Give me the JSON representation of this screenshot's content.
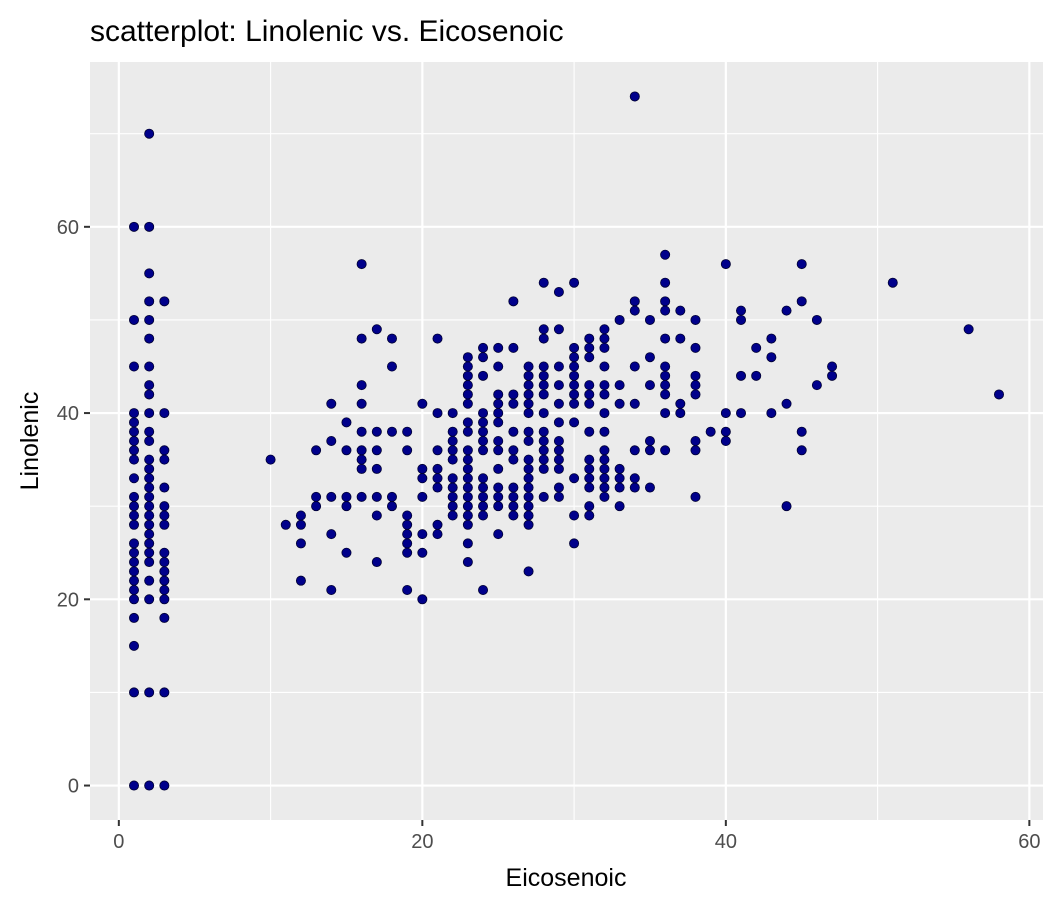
{
  "chart_data": {
    "type": "scatter",
    "title": "scatterplot: Linolenic vs. Eicosenoic",
    "xlabel": "Eicosenoic",
    "ylabel": "Linolenic",
    "xlim": [
      -1.9,
      60.9
    ],
    "ylim": [
      -3.7,
      77.7
    ],
    "x_ticks": [
      0,
      20,
      40,
      60
    ],
    "x_tick_labels": [
      "0",
      "20",
      "40",
      "60"
    ],
    "y_ticks": [
      0,
      20,
      40,
      60
    ],
    "y_tick_labels": [
      "0",
      "20",
      "40",
      "60"
    ],
    "grid": true,
    "legend": "none",
    "point_color": "#00008b",
    "panel_color": "#ebebeb",
    "points": [
      [
        1,
        0
      ],
      [
        1,
        10
      ],
      [
        1,
        15
      ],
      [
        1,
        18
      ],
      [
        1,
        20
      ],
      [
        1,
        21
      ],
      [
        1,
        22
      ],
      [
        1,
        23
      ],
      [
        1,
        24
      ],
      [
        1,
        25
      ],
      [
        1,
        26
      ],
      [
        1,
        28
      ],
      [
        1,
        29
      ],
      [
        1,
        30
      ],
      [
        1,
        31
      ],
      [
        1,
        33
      ],
      [
        1,
        35
      ],
      [
        1,
        36
      ],
      [
        1,
        37
      ],
      [
        1,
        38
      ],
      [
        1,
        39
      ],
      [
        1,
        40
      ],
      [
        1,
        45
      ],
      [
        1,
        50
      ],
      [
        1,
        60
      ],
      [
        2,
        0
      ],
      [
        2,
        10
      ],
      [
        2,
        20
      ],
      [
        2,
        22
      ],
      [
        2,
        24
      ],
      [
        2,
        25
      ],
      [
        2,
        26
      ],
      [
        2,
        27
      ],
      [
        2,
        28
      ],
      [
        2,
        29
      ],
      [
        2,
        30
      ],
      [
        2,
        31
      ],
      [
        2,
        32
      ],
      [
        2,
        33
      ],
      [
        2,
        34
      ],
      [
        2,
        35
      ],
      [
        2,
        37
      ],
      [
        2,
        38
      ],
      [
        2,
        40
      ],
      [
        2,
        42
      ],
      [
        2,
        43
      ],
      [
        2,
        45
      ],
      [
        2,
        48
      ],
      [
        2,
        50
      ],
      [
        2,
        52
      ],
      [
        2,
        55
      ],
      [
        2,
        60
      ],
      [
        2,
        70
      ],
      [
        3,
        0
      ],
      [
        3,
        10
      ],
      [
        3,
        18
      ],
      [
        3,
        20
      ],
      [
        3,
        21
      ],
      [
        3,
        22
      ],
      [
        3,
        23
      ],
      [
        3,
        24
      ],
      [
        3,
        25
      ],
      [
        3,
        28
      ],
      [
        3,
        29
      ],
      [
        3,
        30
      ],
      [
        3,
        32
      ],
      [
        3,
        35
      ],
      [
        3,
        36
      ],
      [
        3,
        40
      ],
      [
        3,
        52
      ],
      [
        10,
        35
      ],
      [
        11,
        28
      ],
      [
        12,
        22
      ],
      [
        12,
        26
      ],
      [
        12,
        28
      ],
      [
        12,
        29
      ],
      [
        13,
        30
      ],
      [
        13,
        31
      ],
      [
        13,
        36
      ],
      [
        14,
        21
      ],
      [
        14,
        27
      ],
      [
        14,
        31
      ],
      [
        14,
        37
      ],
      [
        14,
        41
      ],
      [
        15,
        25
      ],
      [
        15,
        30
      ],
      [
        15,
        31
      ],
      [
        15,
        36
      ],
      [
        15,
        39
      ],
      [
        16,
        31
      ],
      [
        16,
        34
      ],
      [
        16,
        35
      ],
      [
        16,
        36
      ],
      [
        16,
        38
      ],
      [
        16,
        41
      ],
      [
        16,
        43
      ],
      [
        16,
        48
      ],
      [
        16,
        56
      ],
      [
        17,
        24
      ],
      [
        17,
        29
      ],
      [
        17,
        31
      ],
      [
        17,
        34
      ],
      [
        17,
        36
      ],
      [
        17,
        38
      ],
      [
        17,
        49
      ],
      [
        18,
        30
      ],
      [
        18,
        31
      ],
      [
        18,
        38
      ],
      [
        18,
        45
      ],
      [
        18,
        48
      ],
      [
        19,
        21
      ],
      [
        19,
        25
      ],
      [
        19,
        26
      ],
      [
        19,
        27
      ],
      [
        19,
        28
      ],
      [
        19,
        29
      ],
      [
        19,
        36
      ],
      [
        19,
        38
      ],
      [
        20,
        20
      ],
      [
        20,
        25
      ],
      [
        20,
        27
      ],
      [
        20,
        31
      ],
      [
        20,
        33
      ],
      [
        20,
        34
      ],
      [
        20,
        41
      ],
      [
        21,
        27
      ],
      [
        21,
        28
      ],
      [
        21,
        32
      ],
      [
        21,
        33
      ],
      [
        21,
        34
      ],
      [
        21,
        36
      ],
      [
        21,
        40
      ],
      [
        21,
        48
      ],
      [
        22,
        29
      ],
      [
        22,
        30
      ],
      [
        22,
        31
      ],
      [
        22,
        32
      ],
      [
        22,
        33
      ],
      [
        22,
        35
      ],
      [
        22,
        36
      ],
      [
        22,
        37
      ],
      [
        22,
        38
      ],
      [
        22,
        40
      ],
      [
        23,
        24
      ],
      [
        23,
        26
      ],
      [
        23,
        28
      ],
      [
        23,
        29
      ],
      [
        23,
        30
      ],
      [
        23,
        31
      ],
      [
        23,
        32
      ],
      [
        23,
        33
      ],
      [
        23,
        34
      ],
      [
        23,
        35
      ],
      [
        23,
        36
      ],
      [
        23,
        38
      ],
      [
        23,
        39
      ],
      [
        23,
        41
      ],
      [
        23,
        42
      ],
      [
        23,
        43
      ],
      [
        23,
        44
      ],
      [
        23,
        45
      ],
      [
        23,
        46
      ],
      [
        24,
        21
      ],
      [
        24,
        29
      ],
      [
        24,
        30
      ],
      [
        24,
        31
      ],
      [
        24,
        32
      ],
      [
        24,
        33
      ],
      [
        24,
        36
      ],
      [
        24,
        37
      ],
      [
        24,
        38
      ],
      [
        24,
        39
      ],
      [
        24,
        40
      ],
      [
        24,
        44
      ],
      [
        24,
        46
      ],
      [
        24,
        47
      ],
      [
        25,
        27
      ],
      [
        25,
        30
      ],
      [
        25,
        31
      ],
      [
        25,
        32
      ],
      [
        25,
        34
      ],
      [
        25,
        36
      ],
      [
        25,
        37
      ],
      [
        25,
        39
      ],
      [
        25,
        40
      ],
      [
        25,
        41
      ],
      [
        25,
        42
      ],
      [
        25,
        45
      ],
      [
        25,
        47
      ],
      [
        26,
        29
      ],
      [
        26,
        30
      ],
      [
        26,
        31
      ],
      [
        26,
        32
      ],
      [
        26,
        35
      ],
      [
        26,
        36
      ],
      [
        26,
        38
      ],
      [
        26,
        41
      ],
      [
        26,
        42
      ],
      [
        26,
        47
      ],
      [
        26,
        52
      ],
      [
        27,
        23
      ],
      [
        27,
        28
      ],
      [
        27,
        29
      ],
      [
        27,
        30
      ],
      [
        27,
        31
      ],
      [
        27,
        32
      ],
      [
        27,
        33
      ],
      [
        27,
        34
      ],
      [
        27,
        35
      ],
      [
        27,
        37
      ],
      [
        27,
        38
      ],
      [
        27,
        40
      ],
      [
        27,
        41
      ],
      [
        27,
        42
      ],
      [
        27,
        43
      ],
      [
        27,
        44
      ],
      [
        27,
        45
      ],
      [
        28,
        31
      ],
      [
        28,
        34
      ],
      [
        28,
        35
      ],
      [
        28,
        36
      ],
      [
        28,
        37
      ],
      [
        28,
        38
      ],
      [
        28,
        40
      ],
      [
        28,
        42
      ],
      [
        28,
        43
      ],
      [
        28,
        44
      ],
      [
        28,
        45
      ],
      [
        28,
        48
      ],
      [
        28,
        49
      ],
      [
        28,
        54
      ],
      [
        29,
        31
      ],
      [
        29,
        32
      ],
      [
        29,
        34
      ],
      [
        29,
        35
      ],
      [
        29,
        36
      ],
      [
        29,
        37
      ],
      [
        29,
        39
      ],
      [
        29,
        41
      ],
      [
        29,
        43
      ],
      [
        29,
        45
      ],
      [
        29,
        49
      ],
      [
        29,
        53
      ],
      [
        30,
        26
      ],
      [
        30,
        29
      ],
      [
        30,
        33
      ],
      [
        30,
        39
      ],
      [
        30,
        41
      ],
      [
        30,
        42
      ],
      [
        30,
        43
      ],
      [
        30,
        44
      ],
      [
        30,
        45
      ],
      [
        30,
        46
      ],
      [
        30,
        47
      ],
      [
        30,
        54
      ],
      [
        31,
        29
      ],
      [
        31,
        30
      ],
      [
        31,
        32
      ],
      [
        31,
        33
      ],
      [
        31,
        34
      ],
      [
        31,
        35
      ],
      [
        31,
        38
      ],
      [
        31,
        41
      ],
      [
        31,
        42
      ],
      [
        31,
        43
      ],
      [
        31,
        46
      ],
      [
        31,
        47
      ],
      [
        31,
        48
      ],
      [
        32,
        31
      ],
      [
        32,
        32
      ],
      [
        32,
        33
      ],
      [
        32,
        34
      ],
      [
        32,
        35
      ],
      [
        32,
        36
      ],
      [
        32,
        38
      ],
      [
        32,
        40
      ],
      [
        32,
        42
      ],
      [
        32,
        43
      ],
      [
        32,
        45
      ],
      [
        32,
        47
      ],
      [
        32,
        48
      ],
      [
        32,
        49
      ],
      [
        33,
        30
      ],
      [
        33,
        32
      ],
      [
        33,
        33
      ],
      [
        33,
        34
      ],
      [
        33,
        41
      ],
      [
        33,
        43
      ],
      [
        33,
        50
      ],
      [
        34,
        32
      ],
      [
        34,
        33
      ],
      [
        34,
        36
      ],
      [
        34,
        41
      ],
      [
        34,
        45
      ],
      [
        34,
        51
      ],
      [
        34,
        52
      ],
      [
        34,
        74
      ],
      [
        35,
        32
      ],
      [
        35,
        36
      ],
      [
        35,
        37
      ],
      [
        35,
        43
      ],
      [
        35,
        46
      ],
      [
        35,
        50
      ],
      [
        36,
        36
      ],
      [
        36,
        40
      ],
      [
        36,
        42
      ],
      [
        36,
        43
      ],
      [
        36,
        44
      ],
      [
        36,
        45
      ],
      [
        36,
        48
      ],
      [
        36,
        51
      ],
      [
        36,
        52
      ],
      [
        36,
        54
      ],
      [
        36,
        57
      ],
      [
        37,
        40
      ],
      [
        37,
        41
      ],
      [
        37,
        48
      ],
      [
        37,
        51
      ],
      [
        38,
        31
      ],
      [
        38,
        36
      ],
      [
        38,
        37
      ],
      [
        38,
        42
      ],
      [
        38,
        43
      ],
      [
        38,
        44
      ],
      [
        38,
        47
      ],
      [
        38,
        50
      ],
      [
        39,
        38
      ],
      [
        40,
        37
      ],
      [
        40,
        38
      ],
      [
        40,
        40
      ],
      [
        40,
        56
      ],
      [
        41,
        40
      ],
      [
        41,
        44
      ],
      [
        41,
        50
      ],
      [
        41,
        51
      ],
      [
        42,
        44
      ],
      [
        42,
        47
      ],
      [
        43,
        40
      ],
      [
        43,
        46
      ],
      [
        43,
        48
      ],
      [
        44,
        30
      ],
      [
        44,
        41
      ],
      [
        44,
        51
      ],
      [
        45,
        36
      ],
      [
        45,
        38
      ],
      [
        45,
        52
      ],
      [
        45,
        56
      ],
      [
        46,
        43
      ],
      [
        46,
        50
      ],
      [
        47,
        44
      ],
      [
        47,
        45
      ],
      [
        51,
        54
      ],
      [
        56,
        49
      ],
      [
        58,
        42
      ]
    ]
  }
}
